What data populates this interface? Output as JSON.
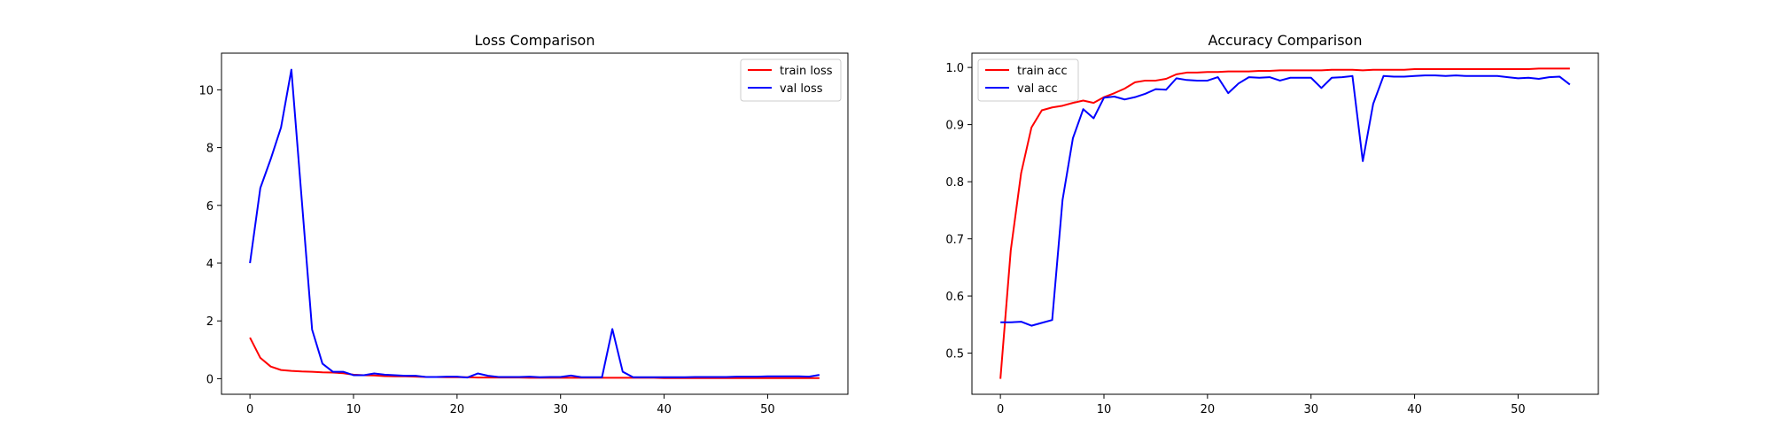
{
  "chart_data": [
    {
      "type": "line",
      "title": "Loss Comparison",
      "xlabel": "",
      "ylabel": "",
      "xlim": [
        -2.75,
        57.75
      ],
      "ylim": [
        -0.54,
        11.27
      ],
      "xticks": [
        0,
        10,
        20,
        30,
        40,
        50
      ],
      "yticks": [
        0,
        2,
        4,
        6,
        8,
        10
      ],
      "grid": false,
      "legend_position": "top-right",
      "series": [
        {
          "name": "train loss",
          "color": "#ff0000",
          "x": [
            0,
            1,
            2,
            3,
            4,
            5,
            6,
            7,
            8,
            9,
            10,
            11,
            12,
            13,
            14,
            15,
            16,
            17,
            18,
            19,
            20,
            21,
            22,
            23,
            24,
            25,
            26,
            27,
            28,
            29,
            30,
            31,
            32,
            33,
            34,
            35,
            36,
            37,
            38,
            39,
            40,
            41,
            42,
            43,
            44,
            45,
            46,
            47,
            48,
            49,
            50,
            51,
            52,
            53,
            54,
            55
          ],
          "values": [
            1.42,
            0.72,
            0.42,
            0.3,
            0.27,
            0.25,
            0.24,
            0.22,
            0.21,
            0.19,
            0.14,
            0.12,
            0.11,
            0.09,
            0.08,
            0.08,
            0.07,
            0.06,
            0.06,
            0.05,
            0.05,
            0.05,
            0.04,
            0.04,
            0.04,
            0.04,
            0.04,
            0.03,
            0.03,
            0.03,
            0.03,
            0.03,
            0.03,
            0.03,
            0.03,
            0.03,
            0.03,
            0.03,
            0.03,
            0.03,
            0.02,
            0.02,
            0.02,
            0.02,
            0.02,
            0.02,
            0.02,
            0.02,
            0.02,
            0.02,
            0.02,
            0.02,
            0.02,
            0.02,
            0.02,
            0.02
          ]
        },
        {
          "name": "val loss",
          "color": "#0000ff",
          "x": [
            0,
            1,
            2,
            3,
            4,
            5,
            6,
            7,
            8,
            9,
            10,
            11,
            12,
            13,
            14,
            15,
            16,
            17,
            18,
            19,
            20,
            21,
            22,
            23,
            24,
            25,
            26,
            27,
            28,
            29,
            30,
            31,
            32,
            33,
            34,
            35,
            36,
            37,
            38,
            39,
            40,
            41,
            42,
            43,
            44,
            45,
            46,
            47,
            48,
            49,
            50,
            51,
            52,
            53,
            54,
            55
          ],
          "values": [
            4.0,
            6.6,
            7.6,
            8.7,
            10.7,
            6.2,
            1.7,
            0.52,
            0.24,
            0.24,
            0.12,
            0.12,
            0.18,
            0.14,
            0.12,
            0.1,
            0.1,
            0.06,
            0.06,
            0.07,
            0.07,
            0.04,
            0.18,
            0.1,
            0.06,
            0.06,
            0.06,
            0.07,
            0.05,
            0.06,
            0.06,
            0.11,
            0.05,
            0.05,
            0.05,
            1.72,
            0.24,
            0.05,
            0.05,
            0.05,
            0.05,
            0.05,
            0.05,
            0.06,
            0.06,
            0.06,
            0.06,
            0.07,
            0.07,
            0.07,
            0.08,
            0.08,
            0.08,
            0.08,
            0.07,
            0.13
          ]
        }
      ]
    },
    {
      "type": "line",
      "title": "Accuracy Comparison",
      "xlabel": "",
      "ylabel": "",
      "xlim": [
        -2.75,
        57.75
      ],
      "ylim": [
        0.428,
        1.025
      ],
      "xticks": [
        0,
        10,
        20,
        30,
        40,
        50
      ],
      "yticks": [
        0.5,
        0.6,
        0.7,
        0.8,
        0.9,
        1.0
      ],
      "grid": false,
      "legend_position": "top-left",
      "series": [
        {
          "name": "train acc",
          "color": "#ff0000",
          "x": [
            0,
            1,
            2,
            3,
            4,
            5,
            6,
            7,
            8,
            9,
            10,
            11,
            12,
            13,
            14,
            15,
            16,
            17,
            18,
            19,
            20,
            21,
            22,
            23,
            24,
            25,
            26,
            27,
            28,
            29,
            30,
            31,
            32,
            33,
            34,
            35,
            36,
            37,
            38,
            39,
            40,
            41,
            42,
            43,
            44,
            45,
            46,
            47,
            48,
            49,
            50,
            51,
            52,
            53,
            54,
            55
          ],
          "values": [
            0.455,
            0.68,
            0.815,
            0.895,
            0.925,
            0.93,
            0.933,
            0.938,
            0.942,
            0.938,
            0.948,
            0.955,
            0.963,
            0.974,
            0.977,
            0.977,
            0.98,
            0.988,
            0.991,
            0.991,
            0.992,
            0.992,
            0.993,
            0.993,
            0.993,
            0.994,
            0.994,
            0.995,
            0.995,
            0.995,
            0.995,
            0.995,
            0.996,
            0.996,
            0.996,
            0.995,
            0.996,
            0.996,
            0.996,
            0.996,
            0.997,
            0.997,
            0.997,
            0.997,
            0.997,
            0.997,
            0.997,
            0.997,
            0.997,
            0.997,
            0.997,
            0.997,
            0.998,
            0.998,
            0.998,
            0.998
          ]
        },
        {
          "name": "val acc",
          "color": "#0000ff",
          "x": [
            0,
            1,
            2,
            3,
            4,
            5,
            6,
            7,
            8,
            9,
            10,
            11,
            12,
            13,
            14,
            15,
            16,
            17,
            18,
            19,
            20,
            21,
            22,
            23,
            24,
            25,
            26,
            27,
            28,
            29,
            30,
            31,
            32,
            33,
            34,
            35,
            36,
            37,
            38,
            39,
            40,
            41,
            42,
            43,
            44,
            45,
            46,
            47,
            48,
            49,
            50,
            51,
            52,
            53,
            54,
            55
          ],
          "values": [
            0.554,
            0.554,
            0.555,
            0.548,
            0.553,
            0.558,
            0.768,
            0.876,
            0.927,
            0.911,
            0.947,
            0.949,
            0.944,
            0.948,
            0.954,
            0.962,
            0.961,
            0.981,
            0.978,
            0.977,
            0.977,
            0.983,
            0.955,
            0.972,
            0.983,
            0.982,
            0.983,
            0.977,
            0.982,
            0.982,
            0.982,
            0.964,
            0.982,
            0.983,
            0.985,
            0.836,
            0.936,
            0.985,
            0.984,
            0.984,
            0.985,
            0.986,
            0.986,
            0.985,
            0.986,
            0.985,
            0.985,
            0.985,
            0.985,
            0.983,
            0.981,
            0.982,
            0.98,
            0.983,
            0.984,
            0.97
          ]
        }
      ]
    }
  ]
}
